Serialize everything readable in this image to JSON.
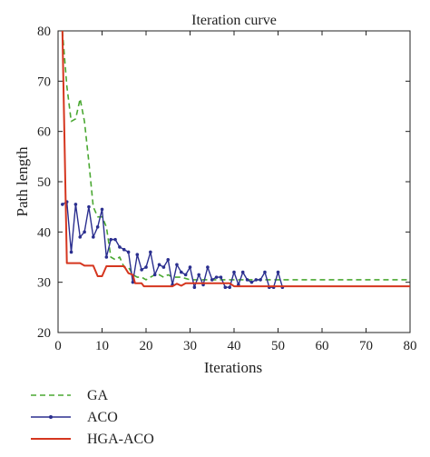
{
  "chart_data": {
    "type": "line",
    "title": "Iteration curve",
    "xlabel": "Iterations",
    "ylabel": "Path length",
    "xlim": [
      0,
      80
    ],
    "ylim": [
      20,
      80
    ],
    "xticks": [
      "0",
      "10",
      "20",
      "30",
      "40",
      "50",
      "60",
      "70",
      "80"
    ],
    "yticks": [
      "20",
      "30",
      "40",
      "50",
      "60",
      "70",
      "80"
    ],
    "grid": false,
    "legend_position": "bottom-left-outside",
    "series": [
      {
        "name": "GA",
        "color": "#4aa832",
        "style": "dashed",
        "marker": "none",
        "points": [
          [
            1,
            80
          ],
          [
            2,
            69
          ],
          [
            3,
            62
          ],
          [
            4,
            62.5
          ],
          [
            5,
            66.5
          ],
          [
            6,
            62
          ],
          [
            7,
            54
          ],
          [
            8,
            45
          ],
          [
            9,
            43
          ],
          [
            10,
            43
          ],
          [
            11,
            41
          ],
          [
            12,
            35
          ],
          [
            13,
            34.5
          ],
          [
            14,
            35
          ],
          [
            15,
            33
          ],
          [
            16,
            33
          ],
          [
            17,
            31.5
          ],
          [
            18,
            31
          ],
          [
            19,
            31
          ],
          [
            20,
            30.5
          ],
          [
            21,
            31
          ],
          [
            22,
            31.5
          ],
          [
            23,
            31.5
          ],
          [
            24,
            31
          ],
          [
            25,
            31.5
          ],
          [
            26,
            31
          ],
          [
            28,
            31
          ],
          [
            30,
            30.5
          ],
          [
            35,
            30.5
          ],
          [
            40,
            30.5
          ],
          [
            50,
            30.5
          ],
          [
            60,
            30.5
          ],
          [
            70,
            30.5
          ],
          [
            80,
            30.5
          ]
        ]
      },
      {
        "name": "ACO",
        "color": "#2b2f8f",
        "style": "solid",
        "marker": "dot",
        "points": [
          [
            1,
            45.5
          ],
          [
            2,
            46
          ],
          [
            3,
            36
          ],
          [
            4,
            45.5
          ],
          [
            5,
            39
          ],
          [
            6,
            40
          ],
          [
            7,
            45
          ],
          [
            8,
            39
          ],
          [
            9,
            41
          ],
          [
            10,
            44.5
          ],
          [
            11,
            35
          ],
          [
            12,
            38.5
          ],
          [
            13,
            38.5
          ],
          [
            14,
            37
          ],
          [
            15,
            36.5
          ],
          [
            16,
            36
          ],
          [
            17,
            30
          ],
          [
            18,
            35.5
          ],
          [
            19,
            32.5
          ],
          [
            20,
            33
          ],
          [
            21,
            36
          ],
          [
            22,
            31.5
          ],
          [
            23,
            33.5
          ],
          [
            24,
            33
          ],
          [
            25,
            34.5
          ],
          [
            26,
            29.5
          ],
          [
            27,
            33.5
          ],
          [
            28,
            32
          ],
          [
            29,
            31.5
          ],
          [
            30,
            33
          ],
          [
            31,
            29
          ],
          [
            32,
            31.5
          ],
          [
            33,
            29.5
          ],
          [
            34,
            33
          ],
          [
            35,
            30.5
          ],
          [
            36,
            31
          ],
          [
            37,
            31
          ],
          [
            38,
            29
          ],
          [
            39,
            29
          ],
          [
            40,
            32
          ],
          [
            41,
            29.5
          ],
          [
            42,
            32
          ],
          [
            43,
            30.5
          ],
          [
            44,
            30
          ],
          [
            45,
            30.5
          ],
          [
            46,
            30.5
          ],
          [
            47,
            32
          ],
          [
            48,
            29
          ],
          [
            49,
            29
          ],
          [
            50,
            32
          ],
          [
            51,
            29
          ]
        ]
      },
      {
        "name": "HGA-ACO",
        "color": "#d5361f",
        "style": "solid",
        "marker": "none",
        "points": [
          [
            1,
            80
          ],
          [
            2,
            33.8
          ],
          [
            5,
            33.8
          ],
          [
            6,
            33.3
          ],
          [
            8,
            33.3
          ],
          [
            9,
            31.2
          ],
          [
            10,
            31.2
          ],
          [
            11,
            33.2
          ],
          [
            15,
            33.2
          ],
          [
            16,
            31.8
          ],
          [
            17,
            31.5
          ],
          [
            17.5,
            29.8
          ],
          [
            19,
            29.8
          ],
          [
            19.5,
            29.2
          ],
          [
            26,
            29.2
          ],
          [
            27,
            29.7
          ],
          [
            28,
            29.3
          ],
          [
            29,
            29.8
          ],
          [
            39,
            29.8
          ],
          [
            40,
            29.2
          ],
          [
            80,
            29.2
          ]
        ]
      }
    ]
  }
}
